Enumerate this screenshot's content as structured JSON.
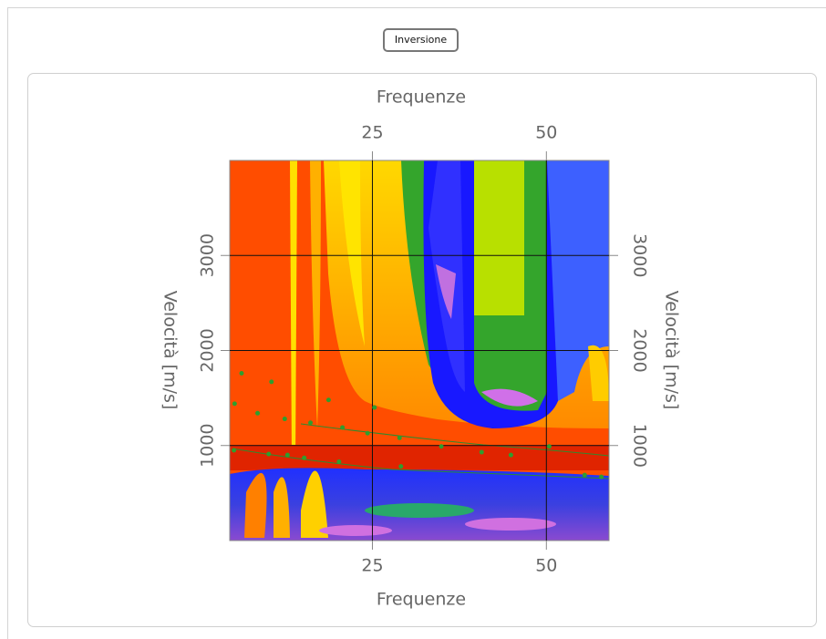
{
  "button": {
    "label": "Inversione"
  },
  "chart_data": {
    "type": "scatter",
    "xlabel": "Frequenze",
    "ylabel": "Velocità [m/s]",
    "x": [
      5.2,
      6.2,
      8.5,
      10.5,
      12.4,
      16.1,
      18.7,
      20.7,
      24.3,
      25.3,
      28.9,
      34.9,
      40.7,
      44.9,
      50.4,
      55.5,
      57.9,
      5.1,
      10.1,
      12.8,
      15.2,
      20.2,
      29.1
    ],
    "values": [
      1440,
      1760,
      1340,
      1670,
      1280,
      1240,
      1480,
      1190,
      1130,
      1400,
      1080,
      990,
      930,
      900,
      990,
      690,
      670,
      950,
      910,
      900,
      870,
      830,
      780
    ],
    "color": "#2e9e2e",
    "xlim": [
      4.5,
      59
    ],
    "ylim": [
      0,
      4000
    ],
    "xticks": [
      25,
      50
    ],
    "yticks": [
      1000,
      2000,
      3000
    ],
    "grid": true
  }
}
